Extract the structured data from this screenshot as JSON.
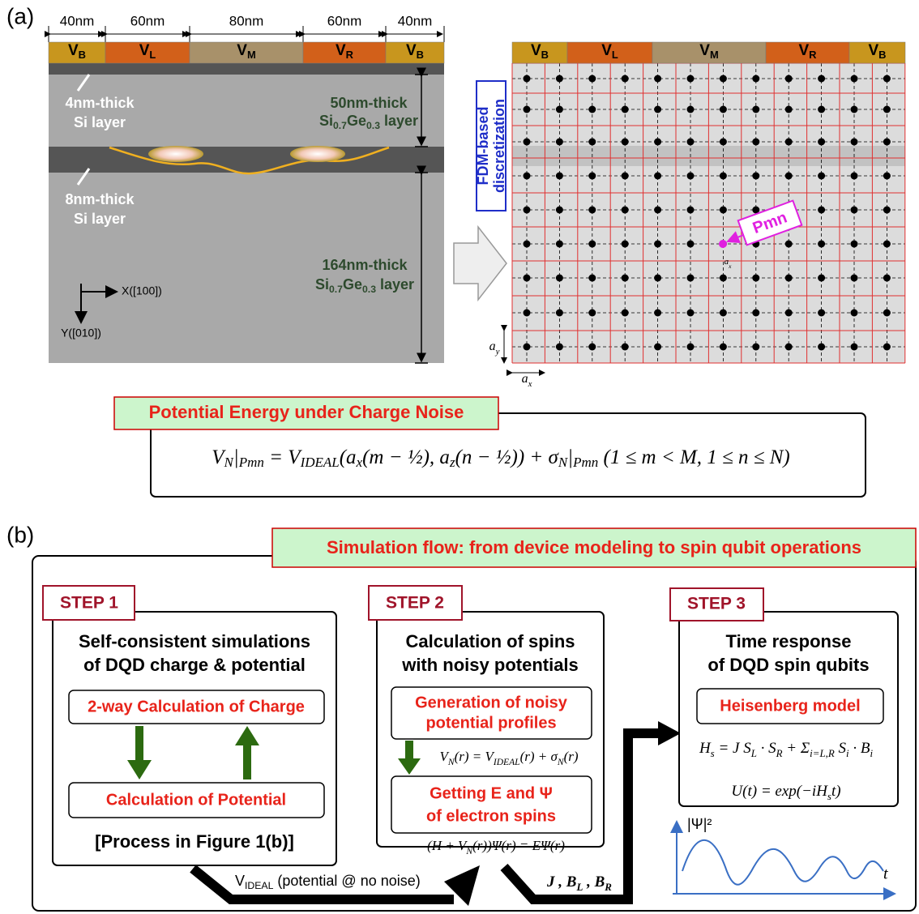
{
  "panel_a": {
    "label": "(a)",
    "dimensions": [
      "40nm",
      "60nm",
      "80nm",
      "60nm",
      "40nm"
    ],
    "gates": [
      [
        {
          "t": "V"
        },
        {
          "t": "B",
          "sub": true
        }
      ],
      [
        {
          "t": "V"
        },
        {
          "t": "L",
          "sub": true
        }
      ],
      [
        {
          "t": "V"
        },
        {
          "t": "M",
          "sub": true
        }
      ],
      [
        {
          "t": "V"
        },
        {
          "t": "R",
          "sub": true
        }
      ],
      [
        {
          "t": "V"
        },
        {
          "t": "B",
          "sub": true
        }
      ]
    ],
    "si_top": [
      "4nm-thick",
      "Si layer"
    ],
    "si_bottom": [
      "8nm-thick",
      "Si layer"
    ],
    "sige_top": {
      "line1": "50nm-thick",
      "line2": [
        {
          "t": "Si"
        },
        {
          "t": "0.7",
          "sub": true
        },
        {
          "t": "Ge"
        },
        {
          "t": "0.3",
          "sub": true
        },
        {
          "t": " layer"
        }
      ]
    },
    "sige_bottom": {
      "line1": "164nm-thick",
      "line2": [
        {
          "t": "Si"
        },
        {
          "t": "0.7",
          "sub": true
        },
        {
          "t": "Ge"
        },
        {
          "t": "0.3",
          "sub": true
        },
        {
          "t": " layer"
        }
      ]
    },
    "axis_x": "X([100])",
    "axis_y": "Y([010])",
    "fdm_label": [
      "FDM-based",
      "discretization"
    ],
    "point_label": "Pmn",
    "a_x": [
      {
        "t": "a"
      },
      {
        "t": "x",
        "sub": true
      }
    ],
    "a_y": [
      {
        "t": "a"
      },
      {
        "t": "y",
        "sub": true
      }
    ],
    "formula_title": "Potential Energy under Charge Noise",
    "formula": [
      {
        "t": "V"
      },
      {
        "t": "N",
        "sub": true
      },
      {
        "t": "|"
      },
      {
        "t": "Pmn",
        "sub": true
      },
      {
        "t": " = V"
      },
      {
        "t": "IDEAL",
        "sub": true
      },
      {
        "t": "(a"
      },
      {
        "t": "x",
        "sub": true
      },
      {
        "t": "(m − ½), a"
      },
      {
        "t": "z",
        "sub": true
      },
      {
        "t": "(n − ½)) + σ"
      },
      {
        "t": "N",
        "sub": true
      },
      {
        "t": "|"
      },
      {
        "t": "Pmn",
        "sub": true
      },
      {
        "t": "  (1 ≤ m < M, 1 ≤ n ≤ N)"
      }
    ]
  },
  "panel_b": {
    "label": "(b)",
    "title": "Simulation flow: from device modeling to spin qubit operations",
    "step1": {
      "label": "STEP 1",
      "heading": [
        "Self-consistent simulations",
        "of DQD charge & potential"
      ],
      "box1": "2-way Calculation of Charge",
      "box2": "Calculation of Potential",
      "note": "[Process in Figure 1(b)]"
    },
    "step2": {
      "label": "STEP 2",
      "heading": [
        "Calculation of spins",
        "with noisy potentials"
      ],
      "box1": [
        "Generation of noisy",
        "potential profiles"
      ],
      "eq1": [
        {
          "t": "V"
        },
        {
          "t": "N",
          "sub": true
        },
        {
          "t": "(r) = V"
        },
        {
          "t": "IDEAL",
          "sub": true
        },
        {
          "t": "(r) + σ"
        },
        {
          "t": "N",
          "sub": true
        },
        {
          "t": "(r)"
        }
      ],
      "box2": [
        "Getting E and Ψ",
        "of electron spins"
      ],
      "eq2": [
        {
          "t": "(H + V"
        },
        {
          "t": "N",
          "sub": true
        },
        {
          "t": "(r))Ψ(r) = EΨ(r)"
        }
      ]
    },
    "step3": {
      "label": "STEP 3",
      "heading": [
        "Time response",
        "of DQD spin qubits"
      ],
      "box1": "Heisenberg model",
      "eq1": [
        {
          "t": "H"
        },
        {
          "t": "s",
          "sub": true
        },
        {
          "t": " = J S"
        },
        {
          "t": "L",
          "sub": true
        },
        {
          "t": " · S"
        },
        {
          "t": "R",
          "sub": true
        },
        {
          "t": " + Σ"
        },
        {
          "t": "i=L,R",
          "sub": true
        },
        {
          "t": " S"
        },
        {
          "t": "i",
          "sub": true
        },
        {
          "t": " · B"
        },
        {
          "t": "i",
          "sub": true
        }
      ],
      "eq2": [
        {
          "t": "U(t) = exp(−iH"
        },
        {
          "t": "s",
          "sub": true
        },
        {
          "t": "t)"
        }
      ],
      "plot_y": "|Ψ|²",
      "plot_x": "t"
    },
    "arrow1": [
      {
        "t": "V"
      },
      {
        "t": "IDEAL",
        "sub": true
      },
      {
        "t": " (potential @ no noise)"
      }
    ],
    "arrow2": [
      {
        "t": "J , B"
      },
      {
        "t": "L",
        "sub": true
      },
      {
        "t": " , B"
      },
      {
        "t": "R",
        "sub": true
      }
    ]
  }
}
